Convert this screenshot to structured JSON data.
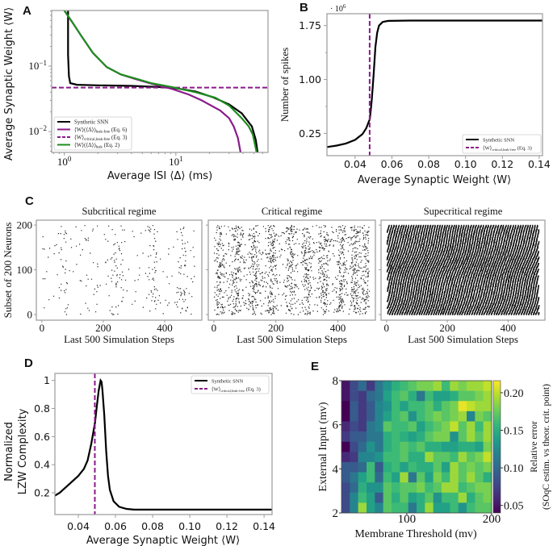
{
  "panel_labels": [
    "A",
    "B",
    "C",
    "D",
    "E"
  ],
  "colors": {
    "synthetic": "#000000",
    "leak_free": "#8b1a8b",
    "critical": "#8b1a8b",
    "leak": "#1e8c1e",
    "frame": "#999999"
  },
  "chart_data": [
    {
      "type": "line",
      "panel": "A",
      "xscale": "log",
      "yscale": "log",
      "xlim": [
        0.77,
        67
      ],
      "ylim": [
        0.0048,
        0.71
      ],
      "xlabel": "Average ISI ⟨Δ⟩ (ms)",
      "ylabel": "Average Synaptic Weight ⟨W⟩",
      "xticks": [
        {
          "value": 1,
          "base": "10",
          "exp": "0"
        },
        {
          "value": 10,
          "base": "10",
          "exp": "1"
        }
      ],
      "yticks": [
        {
          "value": 0.1,
          "base": "10",
          "exp": "−1"
        },
        {
          "value": 0.01,
          "base": "10",
          "exp": "−2"
        }
      ],
      "legend_position": "lower-left",
      "series": [
        {
          "name": "Synthetic SNN",
          "legend": {
            "main": "Synthetic SNN",
            "sub": "",
            "suffix": ""
          },
          "color": "#000000",
          "style": "solid",
          "kind": "curve",
          "points": [
            [
              1.08,
              0.71
            ],
            [
              1.08,
              0.15
            ],
            [
              1.1,
              0.07
            ],
            [
              1.13,
              0.055
            ],
            [
              1.3,
              0.052
            ],
            [
              2,
              0.051
            ],
            [
              4,
              0.05
            ],
            [
              7,
              0.048
            ],
            [
              10,
              0.046
            ],
            [
              15,
              0.041
            ],
            [
              22,
              0.033
            ],
            [
              30,
              0.026
            ],
            [
              39,
              0.019
            ],
            [
              44,
              0.0145
            ],
            [
              48,
              0.012
            ],
            [
              52,
              0.0075
            ],
            [
              54,
              0.0048
            ]
          ]
        },
        {
          "name": "⟨W⟩(⟨Δ⟩) leak-free (Eq. 6)",
          "legend": {
            "main": "⟨W⟩(⟨Δ⟩)",
            "sub": "leak-free",
            "suffix": " (Eq. 6)"
          },
          "color": "#8b1a8b",
          "style": "solid",
          "kind": "curve",
          "points": [
            [
              1.0,
              0.71
            ],
            [
              1.2,
              0.45
            ],
            [
              1.4,
              0.3
            ],
            [
              1.8,
              0.16
            ],
            [
              2.4,
              0.097
            ],
            [
              3.2,
              0.075
            ],
            [
              4.3,
              0.064
            ],
            [
              6,
              0.054
            ],
            [
              9.2,
              0.045
            ],
            [
              13,
              0.037
            ],
            [
              17,
              0.03
            ],
            [
              25,
              0.021
            ],
            [
              30,
              0.016
            ],
            [
              33,
              0.012
            ],
            [
              36,
              0.008
            ],
            [
              38,
              0.0048
            ]
          ]
        },
        {
          "name": "⟨W⟩ critical,leak-free (Eq. 3)",
          "legend": {
            "main": "⟨W⟩",
            "sub": "critical,leak-free",
            "suffix": " (Eq. 3)"
          },
          "color": "#8b1a8b",
          "style": "dashed",
          "kind": "hline",
          "value": 0.047
        },
        {
          "name": "⟨W⟩(⟨Δ⟩) leak (Eq. 2)",
          "legend": {
            "main": "⟨W⟩(⟨Δ⟩)",
            "sub": "leak",
            "suffix": " (Eq. 2)"
          },
          "color": "#1e8c1e",
          "style": "solid",
          "kind": "curve",
          "points": [
            [
              1.0,
              0.71
            ],
            [
              1.2,
              0.45
            ],
            [
              1.4,
              0.3
            ],
            [
              1.8,
              0.16
            ],
            [
              2.4,
              0.097
            ],
            [
              3.2,
              0.075
            ],
            [
              4.3,
              0.065
            ],
            [
              6,
              0.055
            ],
            [
              9.2,
              0.048
            ],
            [
              15,
              0.04
            ],
            [
              22.6,
              0.033
            ],
            [
              30,
              0.025
            ],
            [
              39,
              0.016
            ],
            [
              45,
              0.012
            ],
            [
              49,
              0.009
            ],
            [
              53,
              0.0048
            ]
          ]
        }
      ]
    },
    {
      "type": "line",
      "panel": "B",
      "xlim": [
        0.0247,
        0.1418
      ],
      "ylim": [
        -0.06,
        1.915
      ],
      "multiplier": {
        "prefix": "· 10",
        "exp": "6"
      },
      "xlabel": "Average Synaptic Weight ⟨W⟩",
      "ylabel": "Number of spikes",
      "xticks": [
        "0.04",
        "0.06",
        "0.08",
        "0.10",
        "0.12",
        "0.14"
      ],
      "yticks": [
        "0.25",
        "1.00",
        "1.75"
      ],
      "legend_position": "lower-right",
      "series": [
        {
          "name": "Synthetic SNN",
          "legend": {
            "main": "Synthetic SNN",
            "sub": "",
            "suffix": ""
          },
          "color": "#000000",
          "style": "solid",
          "kind": "curve",
          "points": [
            [
              0.0247,
              0.06
            ],
            [
              0.03,
              0.08
            ],
            [
              0.035,
              0.11
            ],
            [
              0.04,
              0.16
            ],
            [
              0.044,
              0.24
            ],
            [
              0.046,
              0.32
            ],
            [
              0.048,
              0.45
            ],
            [
              0.049,
              0.7
            ],
            [
              0.05,
              1.05
            ],
            [
              0.051,
              1.45
            ],
            [
              0.052,
              1.65
            ],
            [
              0.053,
              1.75
            ],
            [
              0.055,
              1.8
            ],
            [
              0.058,
              1.815
            ],
            [
              0.07,
              1.82
            ],
            [
              0.1418,
              1.82
            ]
          ]
        },
        {
          "name": "⟨W⟩ critical,leak-free (Eq. 3)",
          "legend": {
            "main": "⟨W⟩",
            "sub": "critical,leak-free",
            "suffix": " (Eq. 3)"
          },
          "color": "#8b1a8b",
          "style": "dashed",
          "kind": "vline",
          "value": 0.0479
        }
      ]
    },
    {
      "type": "scatter",
      "panel": "C",
      "ylabel": "Subset of 200 Neurons",
      "xlim": [
        -18,
        521
      ],
      "ylim": [
        -12.6,
        211
      ],
      "xticks": [
        "0",
        "200",
        "400"
      ],
      "yticks": [
        "0",
        "100",
        "200"
      ],
      "subplots": [
        {
          "title": "Subcritical regime",
          "xlabel": "Last 500 Simulation Steps"
        },
        {
          "title": "Critical regime",
          "xlabel": "Last 500 Simulation Steps"
        },
        {
          "title": "Supecritical regime",
          "xlabel": "Last 500 Simulation Steps"
        }
      ]
    },
    {
      "type": "line",
      "panel": "D",
      "xlim": [
        0.0274,
        0.1443
      ],
      "ylim": [
        0.045,
        1.05
      ],
      "xlabel": "Average Synaptic Weight ⟨W⟩",
      "ylabel_lines": [
        "Normalized",
        "LZW Complexity"
      ],
      "xticks": [
        "0.04",
        "0.06",
        "0.08",
        "0.10",
        "0.12",
        "0.14"
      ],
      "yticks": [
        "0.2",
        "0.4",
        "0.6",
        "0.8",
        "1"
      ],
      "legend_position": "upper-right",
      "series": [
        {
          "name": "Synthetic SNN",
          "legend": {
            "main": "Synthetic SNN",
            "sub": "",
            "suffix": ""
          },
          "color": "#000000",
          "style": "solid",
          "kind": "curve",
          "points": [
            [
              0.0274,
              0.18
            ],
            [
              0.03,
              0.2
            ],
            [
              0.035,
              0.26
            ],
            [
              0.04,
              0.32
            ],
            [
              0.043,
              0.37
            ],
            [
              0.045,
              0.43
            ],
            [
              0.047,
              0.55
            ],
            [
              0.049,
              0.7
            ],
            [
              0.05,
              0.82
            ],
            [
              0.051,
              0.93
            ],
            [
              0.052,
              1.0
            ],
            [
              0.0525,
              0.99
            ],
            [
              0.053,
              0.93
            ],
            [
              0.054,
              0.75
            ],
            [
              0.055,
              0.5
            ],
            [
              0.056,
              0.32
            ],
            [
              0.057,
              0.22
            ],
            [
              0.059,
              0.14
            ],
            [
              0.062,
              0.1
            ],
            [
              0.066,
              0.085
            ],
            [
              0.07,
              0.08
            ],
            [
              0.1443,
              0.08
            ]
          ]
        },
        {
          "name": "⟨W⟩ critical,leak-free (Eq. 3)",
          "legend": {
            "main": "⟨W⟩",
            "sub": "critical,leak-free",
            "suffix": " (Eq. 3)"
          },
          "color": "#8b1a8b",
          "style": "dashed",
          "kind": "vline",
          "value": 0.0489
        }
      ]
    },
    {
      "type": "heatmap",
      "panel": "E",
      "xlabel": "Membrane Threshold (mv)",
      "ylabel": "External Input (mv)",
      "xlim": [
        23,
        200
      ],
      "ylim": [
        2,
        8
      ],
      "xticks": [
        "100",
        "200"
      ],
      "yticks": [
        "2",
        "4",
        "6",
        "8"
      ],
      "colormap": "viridis",
      "colorbar": {
        "range": [
          0.04,
          0.216
        ],
        "ticks": [
          "0.05",
          "0.10",
          "0.15",
          "0.20"
        ],
        "label_lines": [
          "Relative error",
          "(SOqC estim. vs theor. crit. point)"
        ]
      },
      "values_top_to_bottom": [
        [
          0.05,
          0.08,
          0.1,
          0.07,
          0.11,
          0.13,
          0.15,
          0.16,
          0.17,
          0.18,
          0.18,
          0.19,
          0.16,
          0.19,
          0.18,
          0.19,
          0.19,
          0.2
        ],
        [
          0.05,
          0.08,
          0.07,
          0.1,
          0.11,
          0.14,
          0.16,
          0.17,
          0.15,
          0.11,
          0.16,
          0.14,
          0.14,
          0.15,
          0.17,
          0.17,
          0.18,
          0.19
        ],
        [
          0.04,
          0.09,
          0.07,
          0.09,
          0.12,
          0.13,
          0.16,
          0.14,
          0.16,
          0.16,
          0.17,
          0.15,
          0.17,
          0.18,
          0.21,
          0.2,
          0.19,
          0.19
        ],
        [
          0.04,
          0.09,
          0.07,
          0.09,
          0.12,
          0.14,
          0.16,
          0.17,
          0.13,
          0.16,
          0.17,
          0.18,
          0.17,
          0.18,
          0.19,
          0.12,
          0.18,
          0.17
        ],
        [
          0.06,
          0.08,
          0.07,
          0.11,
          0.12,
          0.17,
          0.16,
          0.16,
          0.17,
          0.14,
          0.16,
          0.17,
          0.18,
          0.2,
          0.17,
          0.19,
          0.16,
          0.19
        ],
        [
          0.07,
          0.09,
          0.09,
          0.11,
          0.11,
          0.15,
          0.16,
          0.15,
          0.14,
          0.15,
          0.17,
          0.18,
          0.18,
          0.13,
          0.17,
          0.19,
          0.17,
          0.19
        ],
        [
          0.04,
          0.08,
          0.1,
          0.13,
          0.11,
          0.15,
          0.16,
          0.17,
          0.16,
          0.17,
          0.15,
          0.15,
          0.14,
          0.14,
          0.15,
          0.15,
          0.14,
          0.18
        ],
        [
          0.06,
          0.07,
          0.12,
          0.12,
          0.13,
          0.16,
          0.16,
          0.17,
          0.15,
          0.15,
          0.19,
          0.17,
          0.17,
          0.16,
          0.19,
          0.17,
          0.18,
          0.2
        ],
        [
          0.09,
          0.09,
          0.1,
          0.16,
          0.09,
          0.15,
          0.16,
          0.14,
          0.16,
          0.15,
          0.15,
          0.17,
          0.14,
          0.19,
          0.17,
          0.18,
          0.17,
          0.18
        ],
        [
          0.09,
          0.11,
          0.14,
          0.16,
          0.1,
          0.16,
          0.14,
          0.19,
          0.11,
          0.17,
          0.14,
          0.18,
          0.16,
          0.19,
          0.17,
          0.19,
          0.17,
          0.15
        ],
        [
          0.08,
          0.1,
          0.15,
          0.13,
          0.13,
          0.17,
          0.16,
          0.17,
          0.17,
          0.18,
          0.16,
          0.17,
          0.19,
          0.19,
          0.16,
          0.17,
          0.18,
          0.18
        ],
        [
          0.08,
          0.12,
          0.16,
          0.14,
          0.09,
          0.17,
          0.15,
          0.17,
          0.14,
          0.15,
          0.17,
          0.13,
          0.16,
          0.16,
          0.19,
          0.15,
          0.17,
          0.18
        ],
        [
          0.08,
          0.12,
          0.19,
          0.14,
          0.12,
          0.17,
          0.16,
          0.16,
          0.11,
          0.15,
          0.19,
          0.14,
          0.14,
          0.16,
          0.13,
          0.16,
          0.17,
          0.17
        ]
      ]
    }
  ]
}
